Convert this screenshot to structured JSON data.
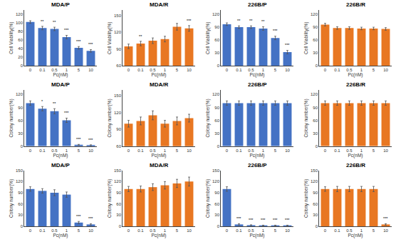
{
  "chart_data": [
    {
      "type": "bar",
      "title": "MDA/P",
      "xlabel": "Pc(nM)",
      "ylabel": "Cell Viability(%)",
      "categories": [
        "0",
        "0.1",
        "0.5",
        "1",
        "5",
        "10"
      ],
      "values": [
        102,
        88,
        86,
        67,
        42,
        35
      ],
      "errors": [
        3,
        4,
        4,
        4,
        3,
        3
      ],
      "color": "#4472C4",
      "ylim": [
        0,
        130
      ],
      "yticks": [
        0,
        20,
        40,
        60,
        80,
        100,
        120
      ],
      "grid": false,
      "annotations": [
        {
          "category": "0.1",
          "text": "**"
        },
        {
          "category": "0.5",
          "text": "**"
        },
        {
          "category": "1",
          "text": "***"
        },
        {
          "category": "5",
          "text": "***"
        },
        {
          "category": "10",
          "text": "***"
        }
      ]
    },
    {
      "type": "bar",
      "title": "MDA/R",
      "xlabel": "Pc(nM)",
      "ylabel": "Cell Viability(%)",
      "categories": [
        "0",
        "0.1",
        "0.5",
        "1",
        "5",
        "10"
      ],
      "values": [
        95,
        100,
        105,
        108,
        130,
        127
      ],
      "errors": [
        4,
        4,
        5,
        5,
        6,
        5
      ],
      "color": "#E87722",
      "ylim": [
        60,
        160
      ],
      "yticks": [
        60,
        90,
        120,
        150
      ],
      "grid": false,
      "annotations": [
        {
          "category": "0.1",
          "text": "**"
        },
        {
          "category": "10",
          "text": "***"
        }
      ]
    },
    {
      "type": "bar",
      "title": "226B/P",
      "xlabel": "Pc(nM)",
      "ylabel": "Cell Viability(%)",
      "categories": [
        "0",
        "0.1",
        "0.5",
        "1",
        "5",
        "10"
      ],
      "values": [
        97,
        90,
        90,
        87,
        65,
        32
      ],
      "errors": [
        3,
        3,
        3,
        4,
        4,
        4
      ],
      "color": "#4472C4",
      "ylim": [
        0,
        130
      ],
      "yticks": [
        0,
        30,
        60,
        90,
        120
      ],
      "grid": false,
      "annotations": [
        {
          "category": "0.1",
          "text": "**"
        },
        {
          "category": "0.5",
          "text": "**"
        },
        {
          "category": "1",
          "text": "**"
        },
        {
          "category": "5",
          "text": "***"
        },
        {
          "category": "10",
          "text": "***"
        }
      ]
    },
    {
      "type": "bar",
      "title": "226B/R",
      "xlabel": "Pc(nM)",
      "ylabel": "Cell Viability(%)",
      "categories": [
        "0",
        "0.1",
        "0.5",
        "1",
        "5",
        "10"
      ],
      "values": [
        96,
        88,
        88,
        87,
        87,
        86
      ],
      "errors": [
        3,
        3,
        3,
        3,
        3,
        3
      ],
      "color": "#E87722",
      "ylim": [
        0,
        130
      ],
      "yticks": [
        0,
        30,
        60,
        90,
        120
      ],
      "grid": false
    },
    {
      "type": "bar",
      "title": "MDA/P",
      "xlabel": "Pc(nM)",
      "ylabel": "Colony number(%)",
      "categories": [
        "0",
        "0.1",
        "0.5",
        "1",
        "5",
        "10"
      ],
      "values": [
        100,
        87,
        81,
        60,
        3,
        2
      ],
      "errors": [
        5,
        5,
        6,
        5,
        1,
        1
      ],
      "color": "#4472C4",
      "ylim": [
        0,
        130
      ],
      "yticks": [
        0,
        30,
        60,
        90,
        120
      ],
      "grid": false,
      "annotations": [
        {
          "category": "0.1",
          "text": "*"
        },
        {
          "category": "0.5",
          "text": "**"
        },
        {
          "category": "1",
          "text": "***"
        },
        {
          "category": "5",
          "text": "***"
        },
        {
          "category": "10",
          "text": "***"
        }
      ]
    },
    {
      "type": "bar",
      "title": "MDA/R",
      "xlabel": "Pc(nM)",
      "ylabel": "Colony number(%)",
      "categories": [
        "0",
        "0.1",
        "0.5",
        "1",
        "5",
        "10"
      ],
      "values": [
        100,
        105,
        115,
        100,
        105,
        110
      ],
      "errors": [
        6,
        7,
        8,
        6,
        7,
        7
      ],
      "color": "#E87722",
      "ylim": [
        60,
        160
      ],
      "yticks": [
        60,
        90,
        120,
        150
      ],
      "grid": false
    },
    {
      "type": "bar",
      "title": "226B/P",
      "xlabel": "Pc(nM)",
      "ylabel": "Colony number(%)",
      "categories": [
        "0",
        "0.1",
        "0.5",
        "1",
        "5",
        "10"
      ],
      "values": [
        100,
        100,
        100,
        100,
        100,
        100
      ],
      "errors": [
        5,
        5,
        5,
        5,
        5,
        5
      ],
      "color": "#4472C4",
      "ylim": [
        0,
        130
      ],
      "yticks": [
        0,
        30,
        60,
        90,
        120
      ],
      "grid": false
    },
    {
      "type": "bar",
      "title": "226B/R",
      "xlabel": "Pc(nM)",
      "ylabel": "Colony number(%)",
      "categories": [
        "0",
        "0.1",
        "0.5",
        "1",
        "5",
        "10"
      ],
      "values": [
        100,
        100,
        100,
        100,
        100,
        100
      ],
      "errors": [
        5,
        5,
        5,
        5,
        5,
        5
      ],
      "color": "#E87722",
      "ylim": [
        0,
        130
      ],
      "yticks": [
        0,
        30,
        60,
        90,
        120
      ],
      "grid": false
    },
    {
      "type": "bar",
      "title": "MDA/P",
      "xlabel": "Pc(nM)",
      "ylabel": "Colony number(%)",
      "categories": [
        "0",
        "0.1",
        "0.5",
        "1",
        "5",
        "10"
      ],
      "values": [
        100,
        95,
        90,
        85,
        10,
        5
      ],
      "errors": [
        6,
        6,
        8,
        7,
        3,
        2
      ],
      "color": "#4472C4",
      "ylim": [
        0,
        150
      ],
      "yticks": [
        0,
        30,
        60,
        90,
        120,
        150
      ],
      "grid": false,
      "annotations": [
        {
          "category": "5",
          "text": "***"
        },
        {
          "category": "10",
          "text": "***"
        }
      ]
    },
    {
      "type": "bar",
      "title": "MDA/R",
      "xlabel": "Pc(nM)",
      "ylabel": "Colony number(%)",
      "categories": [
        "0",
        "0.1",
        "0.5",
        "1",
        "5",
        "10"
      ],
      "values": [
        100,
        100,
        105,
        110,
        115,
        120
      ],
      "errors": [
        7,
        8,
        9,
        10,
        11,
        12
      ],
      "color": "#E87722",
      "ylim": [
        0,
        150
      ],
      "yticks": [
        0,
        30,
        60,
        90,
        120,
        150
      ],
      "grid": false
    },
    {
      "type": "bar",
      "title": "226B/P",
      "xlabel": "Pc(nM)",
      "ylabel": "Colony number(%)",
      "categories": [
        "0",
        "0.1",
        "0.5",
        "1",
        "5",
        "10"
      ],
      "values": [
        100,
        5,
        3,
        2,
        2,
        2
      ],
      "errors": [
        6,
        2,
        1,
        1,
        1,
        1
      ],
      "color": "#4472C4",
      "ylim": [
        0,
        150
      ],
      "yticks": [
        0,
        30,
        60,
        90,
        120,
        150
      ],
      "grid": false,
      "annotations": [
        {
          "category": "0.1",
          "text": "***"
        },
        {
          "category": "0.5",
          "text": "***"
        },
        {
          "category": "1",
          "text": "***"
        },
        {
          "category": "5",
          "text": "***"
        },
        {
          "category": "10",
          "text": "***"
        }
      ]
    },
    {
      "type": "bar",
      "title": "226B/R",
      "xlabel": "Pc(nM)",
      "ylabel": "Colony number(%)",
      "categories": [
        "0",
        "0.1",
        "0.5",
        "1",
        "5",
        "10"
      ],
      "values": [
        100,
        100,
        100,
        100,
        100,
        5
      ],
      "errors": [
        6,
        7,
        7,
        7,
        7,
        2
      ],
      "color": "#E87722",
      "ylim": [
        0,
        150
      ],
      "yticks": [
        0,
        30,
        60,
        90,
        120,
        150
      ],
      "grid": false,
      "annotations": [
        {
          "category": "10",
          "text": "***"
        }
      ]
    }
  ]
}
